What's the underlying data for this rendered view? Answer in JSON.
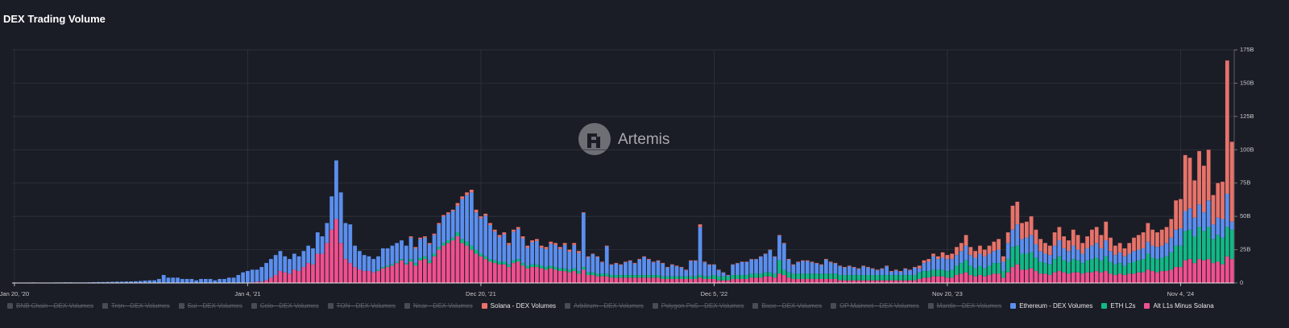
{
  "chart_data": {
    "type": "stacked-bar",
    "title": "DEX Trading Volume",
    "watermark": "Artemis",
    "categories": [
      "Jan 20, '20",
      null,
      null,
      null,
      null,
      null,
      null,
      null,
      null,
      null,
      null,
      null,
      null,
      null,
      null,
      null,
      null,
      null,
      null,
      null,
      null,
      null,
      null,
      null,
      null,
      null,
      null,
      null,
      null,
      null,
      null,
      null,
      null,
      null,
      null,
      null,
      null,
      null,
      null,
      null,
      null,
      null,
      null,
      null,
      null,
      null,
      null,
      null,
      null,
      null,
      "Jan 4, '21",
      null,
      null,
      null,
      null,
      null,
      null,
      null,
      null,
      null,
      null,
      null,
      null,
      null,
      null,
      null,
      null,
      null,
      null,
      null,
      null,
      null,
      null,
      null,
      null,
      null,
      null,
      null,
      null,
      null,
      null,
      null,
      null,
      null,
      null,
      null,
      null,
      null,
      null,
      null,
      null,
      null,
      null,
      null,
      null,
      null,
      null,
      null,
      null,
      null,
      "Dec 20, '21",
      null,
      null,
      null,
      null,
      null,
      null,
      null,
      null,
      null,
      null,
      null,
      null,
      null,
      null,
      null,
      null,
      null,
      null,
      null,
      null,
      null,
      null,
      null,
      null,
      null,
      null,
      null,
      null,
      null,
      null,
      null,
      null,
      null,
      null,
      null,
      null,
      null,
      null,
      null,
      null,
      null,
      null,
      null,
      null,
      null,
      null,
      null,
      null,
      null,
      "Dec 5, '22",
      null,
      null,
      null,
      null,
      null,
      null,
      null,
      null,
      null,
      null,
      null,
      null,
      null,
      null,
      null,
      null,
      null,
      null,
      null,
      null,
      null,
      null,
      null,
      null,
      null,
      null,
      null,
      null,
      null,
      null,
      null,
      null,
      null,
      null,
      null,
      null,
      null,
      null,
      null,
      null,
      null,
      null,
      null,
      null,
      null,
      null,
      null,
      null,
      null,
      "Nov 20, '23",
      null,
      null,
      null,
      null,
      null,
      null,
      null,
      null,
      null,
      null,
      null,
      null,
      null,
      null,
      null,
      null,
      null,
      null,
      null,
      null,
      null,
      null,
      null,
      null,
      null,
      null,
      null,
      null,
      null,
      null,
      null,
      null,
      null,
      null,
      null,
      null,
      null,
      null,
      null,
      null,
      null,
      null,
      null,
      null,
      null,
      null,
      null,
      null,
      null,
      "Nov 4, '24",
      null,
      null,
      null,
      null,
      null,
      null,
      null,
      null,
      null,
      null,
      null
    ],
    "series": [
      {
        "name": "BNB Chain - DEX Volumes",
        "color": "#4a4c54",
        "hidden": true
      },
      {
        "name": "Tron - DEX Volumes",
        "color": "#4a4c54",
        "hidden": true
      },
      {
        "name": "Sui - DEX Volumes",
        "color": "#4a4c54",
        "hidden": true
      },
      {
        "name": "Celo - DEX Volumes",
        "color": "#4a4c54",
        "hidden": true
      },
      {
        "name": "TON - DEX Volumes",
        "color": "#4a4c54",
        "hidden": true
      },
      {
        "name": "Near - DEX Volumes",
        "color": "#4a4c54",
        "hidden": true
      },
      {
        "name": "Solana - DEX Volumes",
        "color": "#e7736a",
        "values": [
          0,
          0,
          0,
          0,
          0,
          0,
          0,
          0,
          0,
          0,
          0,
          0,
          0,
          0,
          0,
          0,
          0,
          0,
          0,
          0,
          0,
          0,
          0,
          0,
          0,
          0,
          0,
          0,
          0,
          0,
          0,
          0,
          0,
          0,
          0,
          0,
          0,
          0,
          0,
          0,
          0,
          0,
          0,
          0,
          0,
          0,
          0,
          0,
          0,
          0,
          0,
          0,
          0,
          0,
          0,
          0,
          0,
          0,
          0,
          0,
          0,
          0,
          0,
          0,
          0,
          0,
          0,
          0,
          0,
          0,
          0,
          0,
          0,
          0,
          0,
          0,
          0,
          0,
          0,
          0,
          0,
          0,
          0,
          0,
          0,
          1,
          1,
          1,
          1,
          1,
          1,
          1,
          1,
          1,
          1,
          2,
          2,
          2,
          2,
          2,
          1.5,
          1.5,
          1.5,
          1.5,
          1.5,
          1.5,
          1.5,
          1.5,
          1.5,
          1.5,
          1.5,
          1.5,
          1.5,
          1.5,
          1.5,
          1.5,
          1.5,
          1.5,
          1.5,
          1.5,
          1.5,
          1.5,
          0.5,
          0.5,
          0.5,
          0.5,
          0.5,
          0.5,
          0.5,
          0.5,
          0.5,
          0.5,
          0.5,
          0.5,
          0.5,
          0.5,
          0.5,
          0.5,
          0.5,
          0.5,
          0.5,
          0.5,
          0.5,
          0.5,
          0.5,
          0.5,
          0.5,
          2,
          0.5,
          0.5,
          0.3,
          0.3,
          0.3,
          0.3,
          0.3,
          0.3,
          0.3,
          0.3,
          0.3,
          0.3,
          0.3,
          0.3,
          0.3,
          0.3,
          0.5,
          0.5,
          0.5,
          0.5,
          0.5,
          0.5,
          0.5,
          0.5,
          0.5,
          0.5,
          0.5,
          0.5,
          0.5,
          0.5,
          0.5,
          0.5,
          0.5,
          0.5,
          0.5,
          0.5,
          0.5,
          0.5,
          0.5,
          0.5,
          0.5,
          0.5,
          0.5,
          0.5,
          0.5,
          0.5,
          2,
          2,
          2,
          2,
          2,
          4,
          3,
          4,
          6,
          6,
          8,
          6,
          5,
          6,
          5,
          6,
          7,
          8,
          4,
          8,
          18,
          17,
          12,
          12,
          14,
          11,
          9,
          8,
          7,
          10,
          10,
          9,
          8,
          12,
          11,
          8,
          9,
          12,
          12,
          10,
          14,
          10,
          7,
          7,
          6,
          8,
          10,
          11,
          12,
          14,
          12,
          11,
          12,
          12,
          14,
          22,
          22,
          42,
          38,
          28,
          40,
          35,
          38,
          22,
          26,
          28,
          100,
          60
        ]
      },
      {
        "name": "Arbitrum - DEX Volumes",
        "color": "#4a4c54",
        "hidden": true
      },
      {
        "name": "Polygon PoS - DEX Volumes",
        "color": "#4a4c54",
        "hidden": true
      },
      {
        "name": "Base - DEX Volumes",
        "color": "#4a4c54",
        "hidden": true
      },
      {
        "name": "OP Mainnet - DEX Volumes",
        "color": "#4a4c54",
        "hidden": true
      },
      {
        "name": "Mantle - DEX Volumes",
        "color": "#4a4c54",
        "hidden": true
      },
      {
        "name": "Ethereum - DEX Volumes",
        "color": "#5b8fee",
        "values": [
          0.2,
          0.2,
          0.3,
          0.3,
          0.4,
          0.3,
          0.3,
          0.3,
          0.3,
          0.4,
          0.4,
          0.5,
          0.5,
          0.4,
          0.4,
          0.4,
          0.5,
          0.6,
          0.7,
          0.7,
          0.8,
          0.9,
          1,
          1,
          1.1,
          1.2,
          1.3,
          1.5,
          1.8,
          2,
          2,
          3,
          6,
          4,
          4,
          4,
          3,
          3,
          3,
          2,
          3,
          3,
          3,
          2,
          3,
          3,
          4,
          4,
          6,
          8,
          8.5,
          9.5,
          9,
          11,
          13,
          14,
          15,
          15,
          12,
          11,
          12,
          11,
          12,
          13,
          12,
          16,
          13,
          15,
          25,
          44,
          38,
          27,
          29,
          16,
          14,
          12,
          11,
          10,
          10,
          14,
          13,
          14,
          14,
          14,
          13,
          16,
          11,
          14,
          14,
          12,
          14,
          17,
          20,
          20,
          20,
          20,
          30,
          35,
          40,
          28,
          26.5,
          30.5,
          25.5,
          21.5,
          18.5,
          20.5,
          14.5,
          21.5,
          22.5,
          18.5,
          13.5,
          16.5,
          17.5,
          13.5,
          13.5,
          16.5,
          16.5,
          14.5,
          17.5,
          13.5,
          17.5,
          13.5,
          40.5,
          11.5,
          13.5,
          12.5,
          8.5,
          20.5,
          7.5,
          8.5,
          7.5,
          9.5,
          10.5,
          8.5,
          11.5,
          13.5,
          11.5,
          9.5,
          10.5,
          9.5,
          6.5,
          8.5,
          7.5,
          6.5,
          4.5,
          11.5,
          11.5,
          36,
          10.5,
          8.5,
          7.7,
          4.7,
          2.7,
          0.7,
          7.7,
          8.7,
          9.7,
          9.7,
          10.7,
          10.7,
          12.7,
          13.7,
          16.7,
          12.7,
          18.5,
          19.5,
          9.5,
          6.5,
          8.5,
          9.5,
          9.5,
          8.5,
          7.5,
          6.5,
          10.5,
          8.5,
          7.5,
          6.5,
          5.5,
          6.5,
          5.5,
          4.5,
          6.5,
          5.5,
          4.5,
          3.5,
          4.5,
          6.5,
          2.5,
          3.5,
          2.5,
          4.5,
          3.5,
          5.5,
          3,
          6,
          7,
          10,
          8,
          9,
          9,
          8,
          8,
          9,
          11,
          8,
          8,
          9,
          9,
          9,
          9,
          10,
          7,
          12,
          13,
          16,
          11,
          12,
          13,
          10,
          8,
          7,
          7,
          10,
          12,
          9,
          8,
          10,
          8,
          7,
          9,
          10,
          11,
          9,
          12,
          8,
          7,
          8,
          7,
          7,
          8,
          8,
          8,
          9,
          9,
          9,
          9,
          10,
          11,
          12,
          13,
          15,
          16,
          14,
          17,
          14,
          20,
          11,
          13,
          14,
          25,
          6
        ]
      },
      {
        "name": "ETH L2s",
        "color": "#12b886",
        "values": [
          0,
          0,
          0,
          0,
          0,
          0,
          0,
          0,
          0,
          0,
          0,
          0,
          0,
          0,
          0,
          0,
          0,
          0,
          0,
          0,
          0,
          0,
          0,
          0,
          0,
          0,
          0,
          0,
          0,
          0,
          0,
          0,
          0,
          0,
          0,
          0,
          0,
          0,
          0,
          0,
          0,
          0,
          0,
          0,
          0,
          0,
          0,
          0,
          0,
          0,
          0,
          0,
          0,
          0,
          0,
          0,
          0,
          0,
          0,
          0,
          0,
          0,
          0,
          0,
          0,
          0,
          0,
          0,
          0,
          0,
          0,
          0,
          0,
          0,
          0,
          0,
          0,
          0,
          1,
          1,
          1,
          1,
          1,
          1,
          1,
          2,
          2,
          2,
          2,
          2,
          2,
          2,
          2,
          2,
          2,
          3,
          3,
          3,
          3,
          3,
          2,
          2,
          2,
          2,
          2,
          2,
          2,
          2,
          2,
          2,
          2,
          2,
          2,
          2,
          2,
          2,
          2,
          2,
          2,
          2,
          2,
          2,
          2,
          2,
          2,
          2,
          2,
          2,
          2,
          2,
          2,
          2,
          2,
          2,
          2,
          2,
          2,
          2,
          2,
          2,
          2,
          2,
          2,
          2,
          2,
          2,
          2,
          2,
          2,
          2,
          3,
          3,
          3,
          3,
          3,
          3,
          3,
          3,
          3,
          3,
          3,
          3,
          3,
          3,
          10,
          4,
          4,
          4,
          4,
          4,
          4,
          4,
          4,
          4,
          4,
          4,
          4,
          4,
          4,
          4,
          4,
          4,
          4,
          4,
          4,
          4,
          4,
          4,
          4,
          4,
          4,
          4,
          4,
          4,
          5,
          5,
          5,
          5,
          5,
          5,
          5,
          6,
          7,
          8,
          9,
          7,
          6,
          7,
          6,
          7,
          8,
          8,
          5,
          10,
          15,
          14,
          12,
          12,
          12,
          10,
          9,
          8,
          8,
          10,
          11,
          9,
          9,
          10,
          9,
          8,
          9,
          10,
          10,
          9,
          11,
          9,
          8,
          8,
          7,
          8,
          9,
          9,
          10,
          12,
          10,
          10,
          10,
          11,
          13,
          16,
          16,
          22,
          22,
          20,
          24,
          22,
          24,
          18,
          20,
          20,
          22,
          22
        ]
      },
      {
        "name": "Alt L1s Minus Solana",
        "color": "#f0508f",
        "values": [
          0,
          0,
          0,
          0,
          0,
          0,
          0,
          0,
          0,
          0,
          0,
          0,
          0,
          0,
          0,
          0,
          0,
          0,
          0,
          0,
          0,
          0,
          0,
          0,
          0,
          0,
          0,
          0,
          0,
          0,
          0,
          0,
          0,
          0,
          0,
          0,
          0,
          0,
          0,
          0,
          0,
          0,
          0,
          0,
          0,
          0,
          0,
          0,
          0,
          0,
          0.5,
          0.5,
          1,
          1,
          2,
          4,
          6,
          9,
          8,
          7,
          10,
          9,
          12,
          15,
          14,
          22,
          22,
          30,
          40,
          48,
          30,
          18,
          15,
          12,
          10,
          9,
          9,
          8,
          9,
          11,
          12,
          13,
          15,
          17,
          14,
          16,
          13,
          17,
          18,
          15,
          20,
          25,
          28,
          30,
          32,
          35,
          30,
          28,
          25,
          22,
          20,
          18,
          16,
          15,
          14,
          14,
          12,
          15,
          16,
          13,
          11,
          12,
          12,
          11,
          10,
          11,
          10,
          9,
          9,
          8,
          9,
          7,
          10,
          6,
          6,
          5,
          5,
          5,
          4,
          4,
          4,
          4,
          4,
          4,
          4,
          4,
          4,
          4,
          4,
          3,
          3,
          3,
          3,
          3,
          3,
          3,
          3,
          4,
          3,
          3,
          3,
          2,
          2,
          2,
          3,
          3,
          3,
          3,
          4,
          4,
          4,
          5,
          5,
          4,
          7,
          6,
          4,
          3,
          3,
          3,
          3,
          3,
          3,
          3,
          3,
          3,
          3,
          2,
          2,
          2,
          2,
          2,
          2,
          2,
          2,
          2,
          2,
          2,
          2,
          2,
          2,
          2,
          2,
          2,
          3,
          4,
          4,
          5,
          5,
          5,
          4,
          4,
          6,
          7,
          8,
          6,
          5,
          6,
          5,
          6,
          7,
          7,
          4,
          8,
          12,
          14,
          10,
          10,
          11,
          9,
          7,
          7,
          6,
          8,
          9,
          8,
          7,
          8,
          8,
          7,
          8,
          8,
          9,
          8,
          9,
          7,
          6,
          7,
          6,
          7,
          7,
          8,
          8,
          10,
          9,
          8,
          9,
          9,
          10,
          12,
          12,
          17,
          18,
          15,
          18,
          17,
          18,
          15,
          16,
          14,
          20,
          18
        ]
      }
    ],
    "ylim": [
      0,
      175
    ],
    "yticks": [
      0,
      {
        "value": 25,
        "label": "25B"
      },
      {
        "value": 50,
        "label": "50B"
      },
      {
        "value": 75,
        "label": "75B"
      },
      {
        "value": 100,
        "label": "100B"
      },
      {
        "value": 125,
        "label": "125B"
      },
      {
        "value": 150,
        "label": "150B"
      },
      {
        "value": 175,
        "label": "175B"
      }
    ],
    "grid": true
  }
}
